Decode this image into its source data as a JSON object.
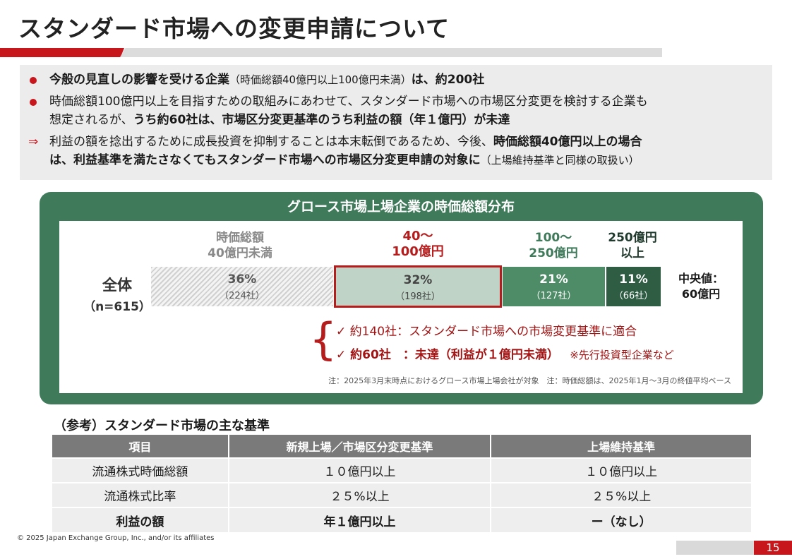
{
  "title": "スタンダード市場への変更申請について",
  "bullets": {
    "b1": {
      "strong1": "今般の見直しの影響を受ける企業",
      "paren": "（時価総額40億円以上100億円未満）",
      "strong2": "は、約200社"
    },
    "b2": {
      "line1": "時価総額100億円以上を目指すための取組みにあわせて、スタンダード市場への市場区分変更を検討する企業も",
      "line2a": "想定されるが、",
      "line2b": "うち約60社は、市場区分変更基準のうち利益の額（年１億円）が未達"
    },
    "b3": {
      "arrow": "⇒",
      "line1a": "利益の額を捻出するために成長投資を抑制することは本末転倒であるため、今後、",
      "line1b": "時価総額40億円以上の場合",
      "line2a": "は、利益基準を満たさなくてもスタンダード市場への市場区分変更申請の対象に",
      "line2b": "（上場維持基準と同様の取扱い）"
    }
  },
  "chart": {
    "title": "グロース市場上場企業の時価総額分布",
    "headers": [
      {
        "l1": "時価総額",
        "l2": "40億円未満",
        "color": "#8a8a8a"
      },
      {
        "l1": "40～",
        "l2": "100億円",
        "color": "#b71c1c"
      },
      {
        "l1": "100～",
        "l2": "250億円",
        "color": "#3f7a5a"
      },
      {
        "l1": "250億円",
        "l2": "以上",
        "color": "#1f3a2c"
      }
    ],
    "overall_l1": "全体",
    "overall_l2": "（n=615）",
    "median_l1": "中央値：",
    "median_l2": "60億円",
    "check1": "✓  約140社：スタンダード市場への市場変更基準に適合",
    "check2_main": "✓  約60社　：未達（利益が１億円未満）",
    "check2_note": "※先行投資型企業など",
    "note": "注：2025年3月末時点におけるグロース市場上場会社が対象　注：時価総額は、2025年1月～3月の終値平均ベース"
  },
  "chart_data": {
    "type": "bar",
    "categories": [
      "時価総額40億円未満",
      "40～100億円",
      "100～250億円",
      "250億円以上"
    ],
    "values": [
      36,
      32,
      21,
      11
    ],
    "counts": [
      224,
      198,
      127,
      66
    ],
    "pct_labels": [
      "36%",
      "32%",
      "21%",
      "11%"
    ],
    "count_labels": [
      "（224社）",
      "（198社）",
      "（127社）",
      "（66社）"
    ],
    "total": 615,
    "median": "60億円"
  },
  "reference": {
    "title": "（参考）スタンダード市場の主な基準",
    "headers": [
      "項目",
      "新規上場／市場区分変更基準",
      "上場維持基準"
    ],
    "rows": [
      [
        "流通株式時価総額",
        "１０億円以上",
        "１０億円以上"
      ],
      [
        "流通株式比率",
        "２５%以上",
        "２５%以上"
      ],
      [
        "利益の額",
        "年１億円以上",
        "ー（なし）"
      ]
    ]
  },
  "footer": {
    "copyright": "© 2025 Japan Exchange Group, Inc., and/or its affiliates",
    "page": "15"
  }
}
